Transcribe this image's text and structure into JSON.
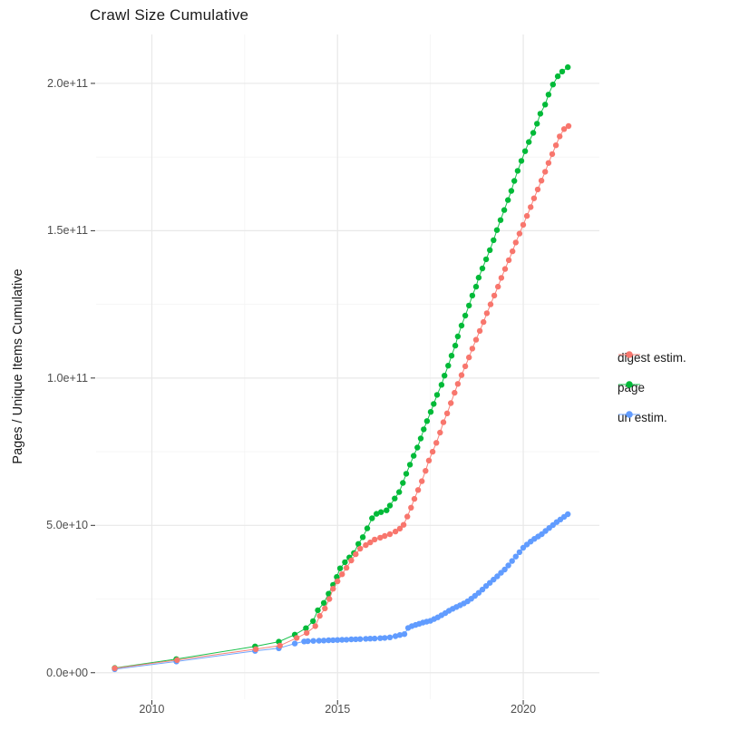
{
  "figure": {
    "title": "Crawl Size Cumulative",
    "y_axis_title": "Pages / Unique Items Cumulative"
  },
  "legend": {
    "position": "right",
    "items": [
      {
        "label": "digest estim.",
        "color": "#F8766D"
      },
      {
        "label": "page",
        "color": "#00BA38"
      },
      {
        "label": "url estim.",
        "color": "#619CFF"
      }
    ]
  },
  "colors": {
    "background": "#FFFFFF",
    "grid_major": "#E8E8E8",
    "grid_minor": "#F4F4F4",
    "tick_mark": "#333333",
    "tick_text": "#4D4D4D",
    "title_text": "#1A1A1A"
  },
  "chart_data": {
    "type": "scatter",
    "title": "Crawl Size Cumulative",
    "xlabel": "",
    "ylabel": "Pages / Unique Items Cumulative",
    "value_unit": "billions (1e9) of pages / unique items",
    "grid": "major+minor",
    "legend_position": "right",
    "xlim": [
      2008.5,
      2022.05
    ],
    "ylim_e9": [
      -9,
      216.6
    ],
    "x_ticks": [
      2010,
      2015,
      2020
    ],
    "x_tick_labels": [
      "2010",
      "2015",
      "2020"
    ],
    "x_minor": [
      2012.5,
      2017.5
    ],
    "y_ticks_e9": [
      0,
      50,
      100,
      150,
      200
    ],
    "y_tick_labels": [
      "0.0e+00",
      "5.0e+10",
      "1.0e+11",
      "1.5e+11",
      "2.0e+11"
    ],
    "y_minor_e9": [
      25,
      75,
      125,
      175
    ],
    "series": [
      {
        "name": "url estim.",
        "color": "#619CFF",
        "points": [
          [
            2009.0,
            1.2
          ],
          [
            2010.66,
            3.8
          ],
          [
            2012.78,
            7.4
          ],
          [
            2013.42,
            8.3
          ],
          [
            2013.85,
            9.9
          ],
          [
            2014.1,
            10.6
          ],
          [
            2014.2,
            10.7
          ],
          [
            2014.35,
            10.8
          ],
          [
            2014.5,
            10.85
          ],
          [
            2014.63,
            10.9
          ],
          [
            2014.76,
            11.0
          ],
          [
            2014.88,
            11.05
          ],
          [
            2015.0,
            11.1
          ],
          [
            2015.12,
            11.15
          ],
          [
            2015.24,
            11.2
          ],
          [
            2015.37,
            11.3
          ],
          [
            2015.49,
            11.35
          ],
          [
            2015.61,
            11.4
          ],
          [
            2015.76,
            11.5
          ],
          [
            2015.88,
            11.55
          ],
          [
            2016.0,
            11.6
          ],
          [
            2016.15,
            11.7
          ],
          [
            2016.27,
            11.8
          ],
          [
            2016.41,
            12.0
          ],
          [
            2016.56,
            12.4
          ],
          [
            2016.68,
            12.8
          ],
          [
            2016.8,
            13.1
          ],
          [
            2016.9,
            15.2
          ],
          [
            2017.0,
            15.8
          ],
          [
            2017.1,
            16.2
          ],
          [
            2017.2,
            16.6
          ],
          [
            2017.3,
            17.0
          ],
          [
            2017.4,
            17.3
          ],
          [
            2017.5,
            17.6
          ],
          [
            2017.6,
            18.2
          ],
          [
            2017.7,
            18.8
          ],
          [
            2017.8,
            19.5
          ],
          [
            2017.9,
            20.2
          ],
          [
            2018.0,
            21.0
          ],
          [
            2018.1,
            21.7
          ],
          [
            2018.2,
            22.3
          ],
          [
            2018.3,
            22.9
          ],
          [
            2018.4,
            23.5
          ],
          [
            2018.5,
            24.2
          ],
          [
            2018.6,
            25.1
          ],
          [
            2018.7,
            26.1
          ],
          [
            2018.8,
            27.1
          ],
          [
            2018.9,
            28.2
          ],
          [
            2019.0,
            29.4
          ],
          [
            2019.1,
            30.5
          ],
          [
            2019.2,
            31.6
          ],
          [
            2019.3,
            32.7
          ],
          [
            2019.4,
            33.9
          ],
          [
            2019.5,
            35.0
          ],
          [
            2019.6,
            36.4
          ],
          [
            2019.7,
            37.9
          ],
          [
            2019.8,
            39.4
          ],
          [
            2019.9,
            40.9
          ],
          [
            2020.0,
            42.4
          ],
          [
            2020.1,
            43.5
          ],
          [
            2020.2,
            44.5
          ],
          [
            2020.3,
            45.4
          ],
          [
            2020.4,
            46.2
          ],
          [
            2020.5,
            47.0
          ],
          [
            2020.6,
            48.1
          ],
          [
            2020.7,
            49.1
          ],
          [
            2020.8,
            50.1
          ],
          [
            2020.9,
            51.1
          ],
          [
            2021.0,
            52.0
          ],
          [
            2021.1,
            52.9
          ],
          [
            2021.2,
            53.8
          ]
        ]
      },
      {
        "name": "page",
        "color": "#00BA38",
        "points": [
          [
            2009.0,
            1.6
          ],
          [
            2010.66,
            4.6
          ],
          [
            2012.78,
            8.9
          ],
          [
            2013.42,
            10.5
          ],
          [
            2013.85,
            12.9
          ],
          [
            2014.15,
            15.1
          ],
          [
            2014.34,
            17.5
          ],
          [
            2014.47,
            21.2
          ],
          [
            2014.63,
            23.7
          ],
          [
            2014.76,
            26.8
          ],
          [
            2014.88,
            29.8
          ],
          [
            2014.98,
            32.5
          ],
          [
            2015.07,
            35.4
          ],
          [
            2015.2,
            37.5
          ],
          [
            2015.32,
            39.1
          ],
          [
            2015.44,
            40.6
          ],
          [
            2015.56,
            43.7
          ],
          [
            2015.68,
            46.0
          ],
          [
            2015.8,
            49.0
          ],
          [
            2015.93,
            52.4
          ],
          [
            2016.05,
            53.9
          ],
          [
            2016.17,
            54.5
          ],
          [
            2016.32,
            55.1
          ],
          [
            2016.41,
            56.7
          ],
          [
            2016.54,
            59.1
          ],
          [
            2016.66,
            61.3
          ],
          [
            2016.76,
            64.4
          ],
          [
            2016.85,
            67.5
          ],
          [
            2016.95,
            70.6
          ],
          [
            2017.05,
            73.6
          ],
          [
            2017.15,
            76.4
          ],
          [
            2017.24,
            79.5
          ],
          [
            2017.32,
            82.6
          ],
          [
            2017.41,
            85.4
          ],
          [
            2017.51,
            88.5
          ],
          [
            2017.59,
            91.2
          ],
          [
            2017.68,
            94.3
          ],
          [
            2017.8,
            97.7
          ],
          [
            2017.88,
            100.8
          ],
          [
            2017.98,
            104.2
          ],
          [
            2018.07,
            107.6
          ],
          [
            2018.17,
            111.0
          ],
          [
            2018.24,
            114.1
          ],
          [
            2018.34,
            117.8
          ],
          [
            2018.44,
            121.2
          ],
          [
            2018.54,
            124.6
          ],
          [
            2018.63,
            128.0
          ],
          [
            2018.73,
            131.0
          ],
          [
            2018.8,
            134.1
          ],
          [
            2018.9,
            137.2
          ],
          [
            2019.0,
            140.3
          ],
          [
            2019.1,
            143.4
          ],
          [
            2019.2,
            146.8
          ],
          [
            2019.29,
            150.2
          ],
          [
            2019.39,
            153.6
          ],
          [
            2019.49,
            157.0
          ],
          [
            2019.59,
            160.4
          ],
          [
            2019.68,
            163.5
          ],
          [
            2019.76,
            166.9
          ],
          [
            2019.85,
            170.3
          ],
          [
            2019.95,
            173.7
          ],
          [
            2020.05,
            177.0
          ],
          [
            2020.15,
            180.1
          ],
          [
            2020.27,
            183.2
          ],
          [
            2020.37,
            186.3
          ],
          [
            2020.46,
            189.7
          ],
          [
            2020.59,
            192.8
          ],
          [
            2020.68,
            196.2
          ],
          [
            2020.8,
            199.6
          ],
          [
            2020.93,
            202.4
          ],
          [
            2021.05,
            204.0
          ],
          [
            2021.2,
            205.5
          ]
        ]
      },
      {
        "name": "digest estim.",
        "color": "#F8766D",
        "points": [
          [
            2009.0,
            1.5
          ],
          [
            2010.68,
            4.3
          ],
          [
            2012.8,
            8.0
          ],
          [
            2013.45,
            9.2
          ],
          [
            2013.9,
            11.8
          ],
          [
            2014.17,
            13.5
          ],
          [
            2014.4,
            15.8
          ],
          [
            2014.52,
            19.3
          ],
          [
            2014.66,
            21.8
          ],
          [
            2014.78,
            25.0
          ],
          [
            2014.88,
            28.5
          ],
          [
            2015.0,
            31.0
          ],
          [
            2015.12,
            33.4
          ],
          [
            2015.24,
            35.6
          ],
          [
            2015.37,
            38.1
          ],
          [
            2015.49,
            40.2
          ],
          [
            2015.61,
            42.1
          ],
          [
            2015.76,
            43.3
          ],
          [
            2015.88,
            44.2
          ],
          [
            2016.0,
            45.2
          ],
          [
            2016.15,
            45.8
          ],
          [
            2016.27,
            46.4
          ],
          [
            2016.41,
            47.0
          ],
          [
            2016.56,
            47.9
          ],
          [
            2016.68,
            48.9
          ],
          [
            2016.78,
            50.2
          ],
          [
            2016.88,
            53.0
          ],
          [
            2016.98,
            56.0
          ],
          [
            2017.07,
            59.0
          ],
          [
            2017.17,
            62.0
          ],
          [
            2017.27,
            65.0
          ],
          [
            2017.37,
            68.5
          ],
          [
            2017.46,
            72.0
          ],
          [
            2017.56,
            75.0
          ],
          [
            2017.66,
            78.0
          ],
          [
            2017.76,
            81.5
          ],
          [
            2017.85,
            85.0
          ],
          [
            2017.95,
            88.0
          ],
          [
            2018.05,
            91.5
          ],
          [
            2018.15,
            95.0
          ],
          [
            2018.24,
            98.0
          ],
          [
            2018.34,
            101.0
          ],
          [
            2018.44,
            104.0
          ],
          [
            2018.54,
            107.0
          ],
          [
            2018.63,
            110.0
          ],
          [
            2018.73,
            113.0
          ],
          [
            2018.83,
            116.0
          ],
          [
            2018.93,
            119.0
          ],
          [
            2019.02,
            122.0
          ],
          [
            2019.12,
            125.0
          ],
          [
            2019.22,
            128.0
          ],
          [
            2019.32,
            131.0
          ],
          [
            2019.41,
            134.0
          ],
          [
            2019.51,
            137.0
          ],
          [
            2019.61,
            140.0
          ],
          [
            2019.71,
            143.0
          ],
          [
            2019.8,
            146.0
          ],
          [
            2019.9,
            149.0
          ],
          [
            2020.0,
            152.0
          ],
          [
            2020.1,
            155.0
          ],
          [
            2020.2,
            158.0
          ],
          [
            2020.29,
            161.0
          ],
          [
            2020.39,
            164.0
          ],
          [
            2020.49,
            167.0
          ],
          [
            2020.59,
            170.0
          ],
          [
            2020.68,
            173.0
          ],
          [
            2020.78,
            176.0
          ],
          [
            2020.88,
            179.0
          ],
          [
            2020.98,
            182.0
          ],
          [
            2021.1,
            184.5
          ],
          [
            2021.22,
            185.5
          ]
        ]
      }
    ]
  }
}
